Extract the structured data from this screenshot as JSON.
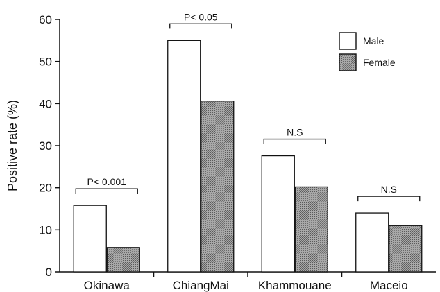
{
  "chart_data": {
    "type": "bar",
    "categories": [
      "Okinawa",
      "ChiangMai",
      "Khammouane",
      "Maceio"
    ],
    "series": [
      {
        "name": "Male",
        "values": [
          15.8,
          55.0,
          27.6,
          14.0
        ]
      },
      {
        "name": "Female",
        "values": [
          5.8,
          40.6,
          20.2,
          11.0
        ]
      }
    ],
    "title": "",
    "xlabel": "",
    "ylabel": "Positive rate (%)",
    "ylim": [
      0,
      60
    ],
    "yticks": [
      0,
      10,
      20,
      30,
      40,
      50,
      60
    ],
    "grid": false,
    "legend_position": "top-right",
    "significance": [
      "P< 0.001",
      "P< 0.05",
      "N.S",
      "N.S"
    ],
    "colors": {
      "male_fill": "#ffffff",
      "female_fill": "#9a9a9a",
      "stroke": "#111111"
    }
  }
}
